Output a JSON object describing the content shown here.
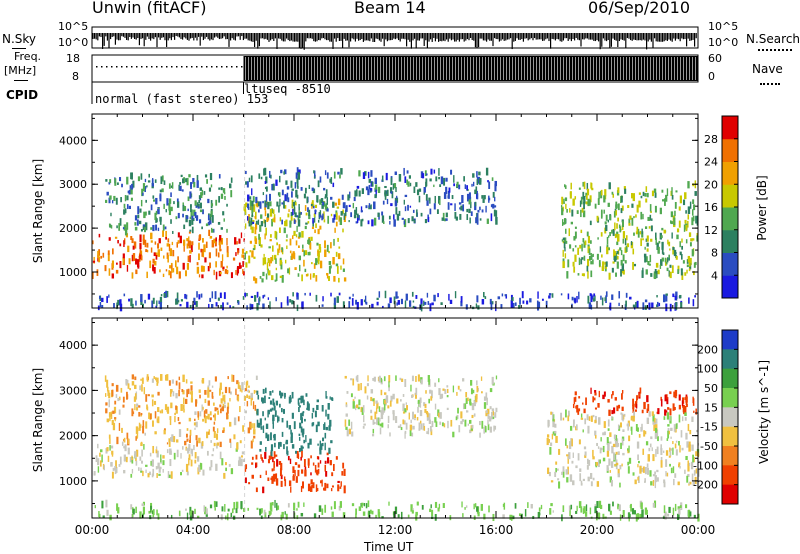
{
  "header": {
    "station": "Unwin (fitACF)",
    "beam": "Beam 14",
    "date": "06/Sep/2010"
  },
  "side_labels": {
    "nsky": "N.Sky",
    "nsearch": "N.Search",
    "freq": "Freq.",
    "freq_unit": "[MHz]",
    "nave": "Nave",
    "cpid": "CPID"
  },
  "mini_axes": {
    "noise_left_top": "10^5",
    "noise_left_bottom": "10^0",
    "noise_right_top": "10^5",
    "noise_right_bottom": "10^0",
    "freq_left_top": "18",
    "freq_left_bottom": "8",
    "nave_right_top": "60",
    "nave_right_bottom": "0"
  },
  "cpid_text": {
    "mode1": "normal (fast stereo) 153",
    "mode2": "ltuseq -8510"
  },
  "x_axis": {
    "label": "Time UT",
    "ticks": [
      "00:00",
      "04:00",
      "08:00",
      "12:00",
      "16:00",
      "20:00",
      "00:00"
    ]
  },
  "chart_data": [
    {
      "type": "heatmap",
      "title": "Power",
      "xlabel": "Time UT",
      "ylabel": "Slant Range [km]",
      "x_range_hours": [
        0,
        24
      ],
      "y_range_km": [
        180,
        4600
      ],
      "y_ticks": [
        "1000",
        "2000",
        "3000",
        "4000"
      ],
      "colorbar": {
        "label": "Power [dB]",
        "ticks": [
          "4",
          "8",
          "12",
          "16",
          "20",
          "24",
          "28"
        ],
        "range": [
          0,
          32
        ],
        "colors": [
          "#1a1ae0",
          "#2a4cc0",
          "#2c8060",
          "#50a850",
          "#c8c800",
          "#f0a000",
          "#f07000",
          "#e00000"
        ]
      },
      "echo_regions": [
        {
          "t_start": 0.0,
          "t_end": 6.0,
          "r_min": 900,
          "r_max": 1900,
          "power_db": 26
        },
        {
          "t_start": 0.5,
          "t_end": 5.5,
          "r_min": 1900,
          "r_max": 3200,
          "power_db": 10
        },
        {
          "t_start": 6.0,
          "t_end": 10.0,
          "r_min": 800,
          "r_max": 2600,
          "power_db": 18
        },
        {
          "t_start": 6.0,
          "t_end": 16.0,
          "r_min": 2100,
          "r_max": 3300,
          "power_db": 8
        },
        {
          "t_start": 18.5,
          "t_end": 24.0,
          "r_min": 900,
          "r_max": 3000,
          "power_db": 15
        },
        {
          "t_start": 0.0,
          "t_end": 24.0,
          "r_min": 180,
          "r_max": 500,
          "power_db": 6
        }
      ]
    },
    {
      "type": "heatmap",
      "title": "Velocity",
      "xlabel": "Time UT",
      "ylabel": "Slant Range [km]",
      "x_range_hours": [
        0,
        24
      ],
      "y_range_km": [
        180,
        4600
      ],
      "y_ticks": [
        "1000",
        "2000",
        "3000",
        "4000"
      ],
      "colorbar": {
        "label": "Velocity [m s^-1]",
        "ticks": [
          "200",
          "100",
          "50",
          "15",
          "-15",
          "-50",
          "-100",
          "-200"
        ],
        "range": [
          -250,
          250
        ],
        "colors": [
          "#1e3cc8",
          "#2c8078",
          "#3ca03c",
          "#78d050",
          "#c8c8c0",
          "#f0c040",
          "#f08020",
          "#f04000",
          "#e00000"
        ]
      },
      "echo_regions": [
        {
          "t_start": 0.0,
          "t_end": 6.0,
          "r_min": 1100,
          "r_max": 1800,
          "velocity": 0
        },
        {
          "t_start": 0.5,
          "t_end": 6.5,
          "r_min": 1800,
          "r_max": 3300,
          "velocity": -40
        },
        {
          "t_start": 6.0,
          "t_end": 10.0,
          "r_min": 800,
          "r_max": 1600,
          "velocity": -180
        },
        {
          "t_start": 6.5,
          "t_end": 9.5,
          "r_min": 1600,
          "r_max": 3000,
          "velocity": 150
        },
        {
          "t_start": 10.0,
          "t_end": 16.0,
          "r_min": 2000,
          "r_max": 3300,
          "velocity": 0
        },
        {
          "t_start": 19.0,
          "t_end": 24.0,
          "r_min": 2500,
          "r_max": 3000,
          "velocity": -180
        },
        {
          "t_start": 18.0,
          "t_end": 24.0,
          "r_min": 900,
          "r_max": 2500,
          "velocity": 0
        },
        {
          "t_start": 0.0,
          "t_end": 24.0,
          "r_min": 180,
          "r_max": 500,
          "velocity": 40
        }
      ]
    }
  ]
}
